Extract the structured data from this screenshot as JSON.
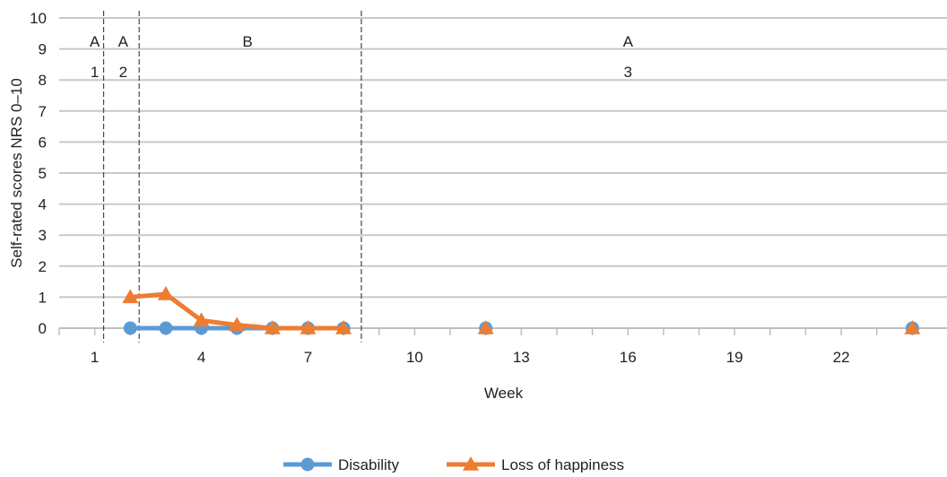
{
  "chart_data": {
    "type": "line",
    "xlabel": "Week",
    "ylabel": "Self-rated scores NRS 0–10",
    "xlim": [
      0,
      25
    ],
    "ylim": [
      0,
      10
    ],
    "x_ticks": [
      1,
      4,
      7,
      10,
      13,
      16,
      19,
      22
    ],
    "y_ticks": [
      0,
      1,
      2,
      3,
      4,
      5,
      6,
      7,
      8,
      9,
      10
    ],
    "grid": "horizontal",
    "legend_position": "bottom",
    "phase_dividers": [
      1.25,
      2.25,
      8.5
    ],
    "phases": [
      {
        "label": "A",
        "number": "1",
        "x": 1
      },
      {
        "label": "A",
        "number": "2",
        "x": 1.8
      },
      {
        "label": "B",
        "number": "",
        "x": 5.3
      },
      {
        "label": "A",
        "number": "3",
        "x": 16.0
      }
    ],
    "series": [
      {
        "name": "Disability",
        "color": "#5b9bd5",
        "marker": "circle",
        "segments": [
          [
            [
              2,
              0
            ],
            [
              3,
              0
            ],
            [
              4,
              0
            ],
            [
              5,
              0
            ],
            [
              6,
              0
            ],
            [
              7,
              0
            ],
            [
              8,
              0
            ]
          ],
          [
            [
              12,
              0
            ]
          ],
          [
            [
              24,
              0
            ]
          ]
        ]
      },
      {
        "name": "Loss of happiness",
        "color": "#ed7d31",
        "marker": "triangle",
        "segments": [
          [
            [
              2,
              1.0
            ],
            [
              3,
              1.1
            ],
            [
              4,
              0.25
            ],
            [
              5,
              0.1
            ],
            [
              6,
              0
            ],
            [
              7,
              0
            ],
            [
              8,
              0
            ]
          ],
          [
            [
              12,
              0
            ]
          ],
          [
            [
              24,
              0
            ]
          ]
        ]
      }
    ]
  }
}
